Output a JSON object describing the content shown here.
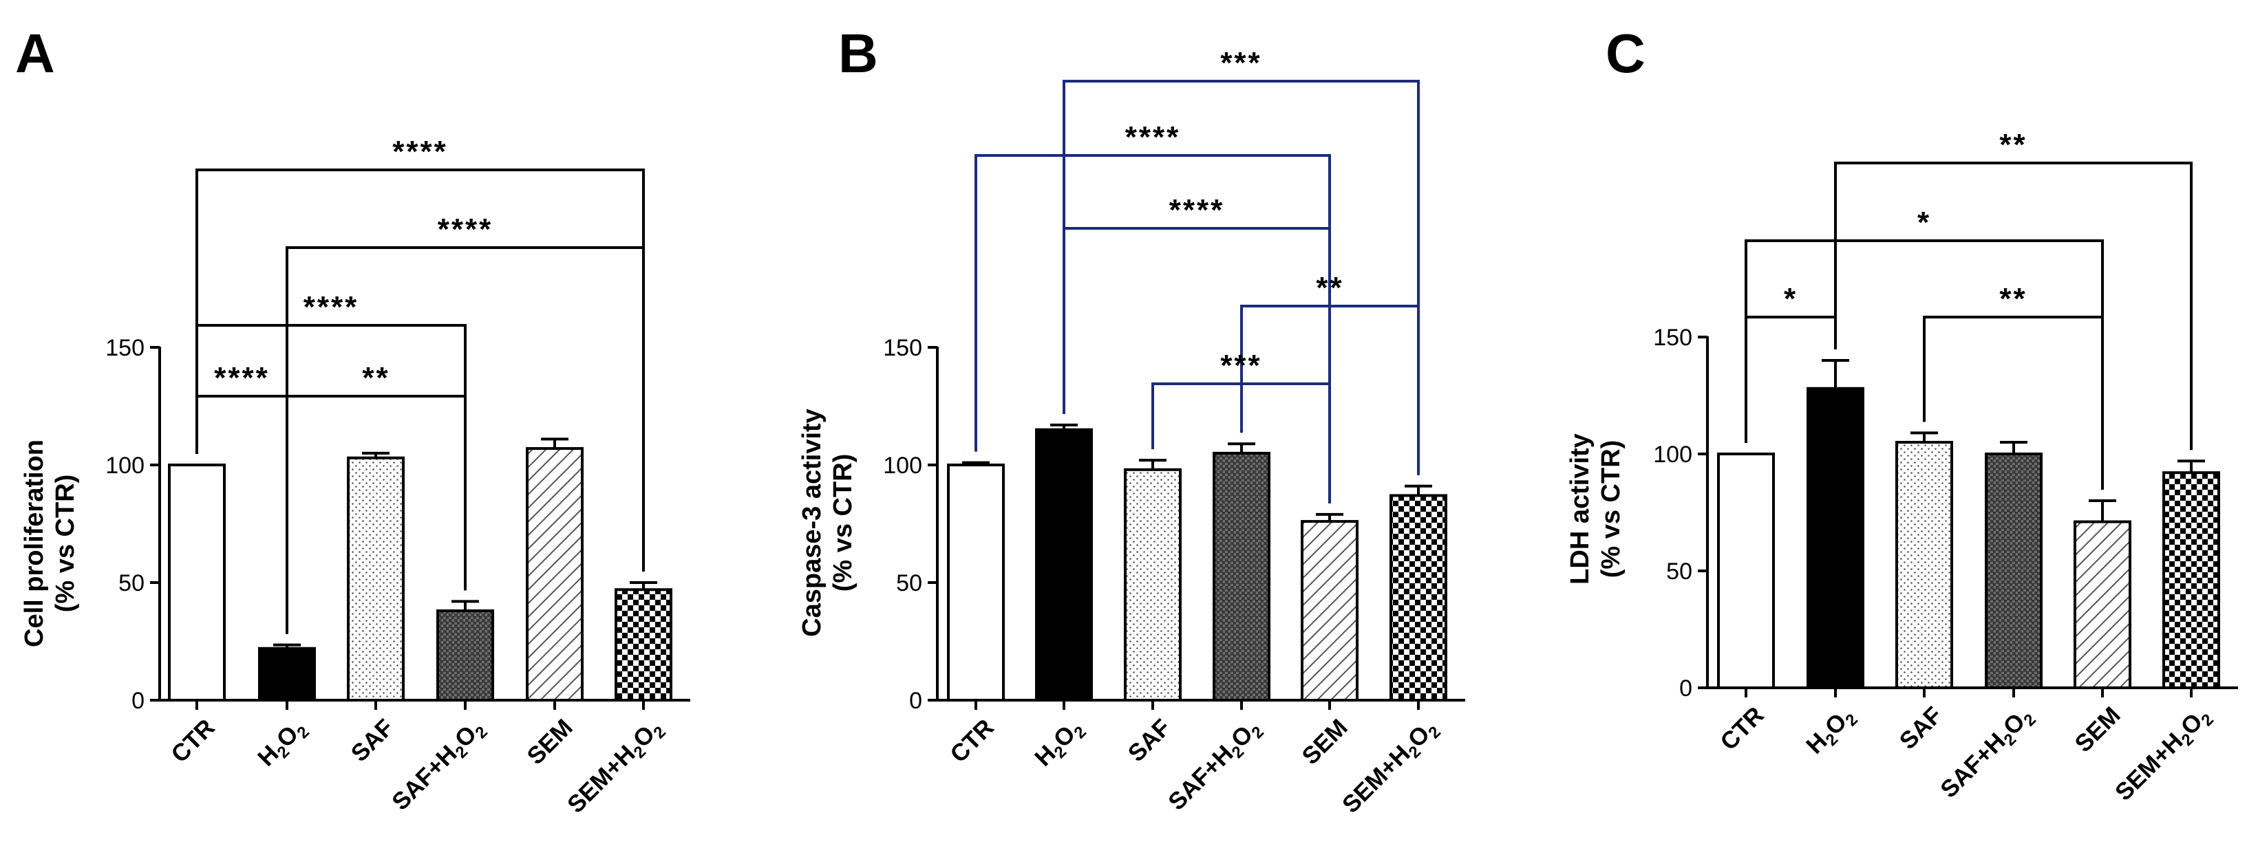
{
  "chart_data": [
    {
      "panel": "A",
      "type": "bar",
      "ylabel_line1": "Cell proliferation",
      "ylabel_line2": "(% vs CTR)",
      "ylim": [
        0,
        150
      ],
      "yticks": [
        "0",
        "50",
        "100",
        "150"
      ],
      "categories": [
        {
          "base": "CTR",
          "sub": []
        },
        {
          "base": "H",
          "sub": [
            "2",
            "O",
            "2"
          ]
        },
        {
          "base": "SAF",
          "sub": []
        },
        {
          "base": "SAF+H",
          "sub": [
            "2",
            "O",
            "2"
          ]
        },
        {
          "base": "SEM",
          "sub": []
        },
        {
          "base": "SEM+H",
          "sub": [
            "2",
            "O",
            "2"
          ]
        }
      ],
      "values": [
        100,
        22,
        103,
        38,
        107,
        47
      ],
      "errors": [
        0,
        1.5,
        2,
        4,
        4,
        3
      ],
      "fills": [
        "white",
        "black",
        "dots",
        "grid",
        "hatch",
        "checker"
      ],
      "bracket_color": "#000000",
      "significance": [
        {
          "from": 0,
          "to": 5,
          "label": "****"
        },
        {
          "from": 1,
          "to": 5,
          "label": "****"
        },
        {
          "from": 0,
          "to": 3,
          "label": "****"
        },
        {
          "from": 0,
          "to": 1,
          "label": "****"
        },
        {
          "from": 1,
          "to": 3,
          "label": "**"
        }
      ]
    },
    {
      "panel": "B",
      "type": "bar",
      "ylabel_line1": "Caspase-3 activity",
      "ylabel_line2": "(% vs CTR)",
      "ylim": [
        0,
        150
      ],
      "yticks": [
        "0",
        "50",
        "100",
        "150"
      ],
      "categories": [
        {
          "base": "CTR",
          "sub": []
        },
        {
          "base": "H",
          "sub": [
            "2",
            "O",
            "2"
          ]
        },
        {
          "base": "SAF",
          "sub": []
        },
        {
          "base": "SAF+H",
          "sub": [
            "2",
            "O",
            "2"
          ]
        },
        {
          "base": "SEM",
          "sub": []
        },
        {
          "base": "SEM+H",
          "sub": [
            "2",
            "O",
            "2"
          ]
        }
      ],
      "values": [
        100,
        115,
        98,
        105,
        76,
        87
      ],
      "errors": [
        1,
        2,
        4,
        4,
        3,
        4
      ],
      "fills": [
        "white",
        "black",
        "dots",
        "grid",
        "hatch",
        "checker"
      ],
      "bracket_color": "#1c2b7a",
      "significance": [
        {
          "from": 1,
          "to": 5,
          "label": "***"
        },
        {
          "from": 0,
          "to": 4,
          "label": "****"
        },
        {
          "from": 1,
          "to": 4,
          "label": "****"
        },
        {
          "from": 3,
          "to": 5,
          "label": "**"
        },
        {
          "from": 2,
          "to": 4,
          "label": "***"
        }
      ]
    },
    {
      "panel": "C",
      "type": "bar",
      "ylabel_line1": "LDH activity",
      "ylabel_line2": "(% vs CTR)",
      "ylim": [
        0,
        150
      ],
      "yticks": [
        "0",
        "50",
        "100",
        "150"
      ],
      "categories": [
        {
          "base": "CTR",
          "sub": []
        },
        {
          "base": "H",
          "sub": [
            "2",
            "O",
            "2"
          ]
        },
        {
          "base": "SAF",
          "sub": []
        },
        {
          "base": "SAF+H",
          "sub": [
            "2",
            "O",
            "2"
          ]
        },
        {
          "base": "SEM",
          "sub": []
        },
        {
          "base": "SEM+H",
          "sub": [
            "2",
            "O",
            "2"
          ]
        }
      ],
      "values": [
        100,
        128,
        105,
        100,
        71,
        92
      ],
      "errors": [
        0,
        12,
        4,
        5,
        9,
        5
      ],
      "fills": [
        "white",
        "black",
        "dots",
        "grid",
        "hatch",
        "checker"
      ],
      "bracket_color": "#000000",
      "significance": [
        {
          "from": 1,
          "to": 5,
          "label": "**"
        },
        {
          "from": 0,
          "to": 4,
          "label": "*"
        },
        {
          "from": 0,
          "to": 1,
          "label": "*"
        },
        {
          "from": 2,
          "to": 4,
          "label": "**"
        }
      ]
    }
  ]
}
